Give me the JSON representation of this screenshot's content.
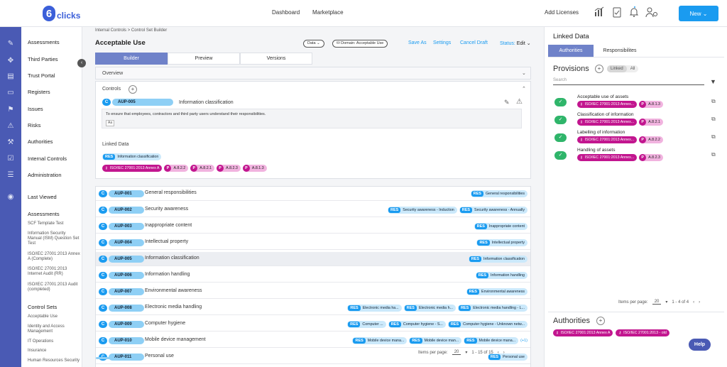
{
  "app": {
    "logo_text": "clicks",
    "logo_mark": "6"
  },
  "topnav": {
    "dashboard": "Dashboard",
    "marketplace": "Marketplace",
    "add_licenses": "Add Licenses",
    "new_button": "New ⌄"
  },
  "sidebar": {
    "items": [
      "Assessments",
      "Third Parties",
      "Trust Portal",
      "Registers",
      "Issues",
      "Risks",
      "Authorities",
      "Internal Controls",
      "Administration"
    ],
    "last_viewed": "Last Viewed",
    "assessments_heading": "Assessments",
    "assessments": [
      "SCF Template Test",
      "Information Security Manual (ISM) Question Set Test",
      "ISO/IEC 27001:2013 Annex A (Complete)",
      "ISO/IEC 27001:2013 Internet Audit (RR)",
      "ISO/IEC 27001:2013 Audit (completed)"
    ],
    "control_sets_heading": "Control Sets",
    "control_sets": [
      "Acceptable Use",
      "Identity and Access Management",
      "IT Operations",
      "Insurance",
      "Human Resources Security"
    ]
  },
  "page": {
    "breadcrumb": "Internal Controls >  Control Set Builder",
    "title": "Acceptable Use",
    "data_dropdown": "Data ⌄",
    "domain_dropdown": "Domain: Acceptable Use",
    "save_as": "Save As",
    "settings": "Settings",
    "cancel_draft": "Cancel Draft",
    "status_label": "Status:",
    "status_value": "Edit ⌄",
    "tabs": [
      "Builder",
      "Preview",
      "Versions"
    ],
    "overview": "Overview",
    "controls_label": "Controls",
    "selected_control": {
      "badge": "C",
      "code": "AUP-005",
      "name": "Information classification",
      "description": "To ensure that employees, contractors and third party users understand their responsibilities.",
      "format_label": "Aa"
    },
    "linked_data_label": "Linked Data",
    "linked_res": {
      "badge": "RES",
      "label": "Information classification"
    },
    "linked_iso": "ISO/IEC 27001:2013 Annex A",
    "linked_provisions": [
      "A.8.2.2",
      "A.8.2.1",
      "A.8.2.3",
      "A.8.1.3"
    ]
  },
  "controls": [
    {
      "code": "AUP-001",
      "name": "General responsibilities",
      "res": [
        "General responsibilities"
      ]
    },
    {
      "code": "AUP-002",
      "name": "Security awareness",
      "res": [
        "Security awareness - Induction",
        "Security awareness - Annually"
      ]
    },
    {
      "code": "AUP-003",
      "name": "Inappropriate content",
      "res": [
        "Inappropriate content"
      ]
    },
    {
      "code": "AUP-004",
      "name": "Intellectual property",
      "res": [
        "Intellectual property"
      ]
    },
    {
      "code": "AUP-005",
      "name": "Information classification",
      "res": [
        "Information classification"
      ]
    },
    {
      "code": "AUP-006",
      "name": "Information handling",
      "res": [
        "Information handling"
      ]
    },
    {
      "code": "AUP-007",
      "name": "Environmental awareness",
      "res": [
        "Environmental awareness"
      ]
    },
    {
      "code": "AUP-008",
      "name": "Electronic media handling",
      "res": [
        "Electronic media ha...",
        "Electronic media h...",
        "Electronic media handling - L..."
      ]
    },
    {
      "code": "AUP-009",
      "name": "Computer hygiene",
      "res": [
        "Computer ...",
        "Computer hygiene - S...",
        "Computer hygiene - Unknown netw..."
      ]
    },
    {
      "code": "AUP-010",
      "name": "Mobile device management",
      "res": [
        "Mobile device mana...",
        "Mobile device man...",
        "Mobile device mana..."
      ],
      "more": "(+1)"
    },
    {
      "code": "AUP-011",
      "name": "Personal use",
      "res": [
        "Personal use"
      ]
    }
  ],
  "list_pager": {
    "items_per_page": "Items per page:",
    "per_page_value": "20",
    "range": "1 - 15 of 15"
  },
  "right_panel": {
    "title": "Linked Data",
    "tabs": [
      "Authorities",
      "Responsibilites"
    ],
    "provisions_title": "Provisions",
    "toggle": [
      "Linked",
      "All"
    ],
    "search_placeholder": "Search",
    "provisions": [
      {
        "title": "Acceptable use of assets",
        "iso": "ISO/IEC 27001:2013 Annex...",
        "ref": "A.8.1.3"
      },
      {
        "title": "Classification of information",
        "iso": "ISO/IEC 27001:2013 Annex...",
        "ref": "A.8.2.1"
      },
      {
        "title": "Labelling of information",
        "iso": "ISO/IEC 27001:2013 Annex...",
        "ref": "A.8.2.2"
      },
      {
        "title": "Handling of assets",
        "iso": "ISO/IEC 27001:2013 Annex...",
        "ref": "A.8.2.3"
      }
    ],
    "pager": {
      "items_per_page": "Items per page:",
      "per_page_value": "20",
      "range": "1 - 4 of 4"
    },
    "authorities_title": "Authorities",
    "authorities": [
      "ISO/IEC 27001:2013 Annex A",
      "ISO/IEC 27001:2013 - old"
    ]
  },
  "help_label": "Help",
  "colors": {
    "primary": "#1a9bf0",
    "rail": "#4a5ab4",
    "tab_active": "#6f82c9",
    "iso": "#c2168f",
    "check": "#2fb56a"
  },
  "icons": [
    "chart-icon",
    "clipboard-icon",
    "bell-icon",
    "user-settings-icon"
  ]
}
